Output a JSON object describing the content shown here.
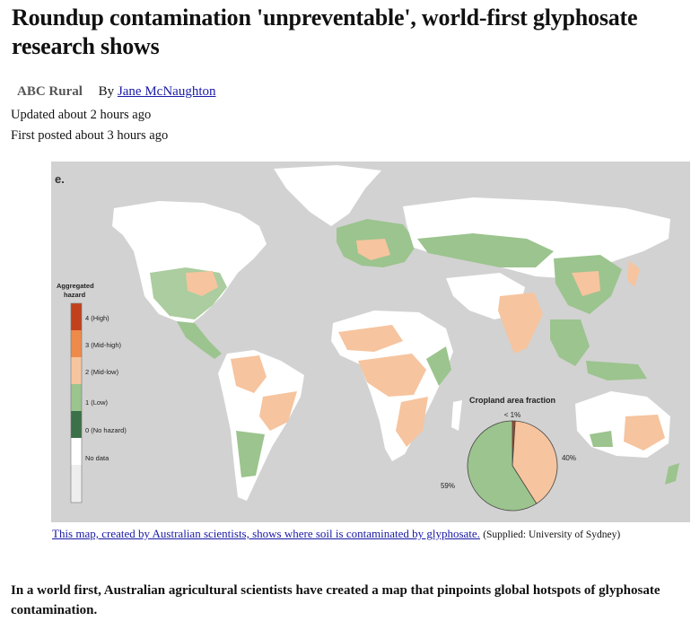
{
  "article": {
    "headline": "Roundup contamination 'unpreventable', world-first glyphosate research shows",
    "source": "ABC Rural",
    "byline_prefix": "By",
    "author": "Jane McNaughton",
    "updated": "Updated about 2 hours ago",
    "first_posted": "First posted about 3 hours ago",
    "lead": "In a world first, Australian agricultural scientists have created a map that pinpoints global hotspots of glyphosate contamination."
  },
  "figure": {
    "panel_letter": "e.",
    "legend_title": "Aggregated hazard",
    "legend": [
      {
        "label": "4 (High)",
        "color": "#c2411c"
      },
      {
        "label": "3 (Mid-high)",
        "color": "#ee8a4a"
      },
      {
        "label": "2 (Mid-low)",
        "color": "#f6c49e"
      },
      {
        "label": "1 (Low)",
        "color": "#9cc48e"
      },
      {
        "label": "0 (No hazard)",
        "color": "#3c7048"
      },
      {
        "label": "No data",
        "color": "#ffffff"
      }
    ],
    "inset_title": "Cropland area fraction",
    "inset_pie": [
      {
        "label": "59%",
        "value": 59,
        "color": "#9cc48e"
      },
      {
        "label": "40%",
        "value": 40,
        "color": "#f6c49e"
      },
      {
        "label": "< 1%",
        "value": 1,
        "color": "#c2411c"
      }
    ],
    "caption_link": "This map, created by Australian scientists, shows where soil is contaminated by glyphosate.",
    "credit": "(Supplied: University of Sydney)"
  }
}
